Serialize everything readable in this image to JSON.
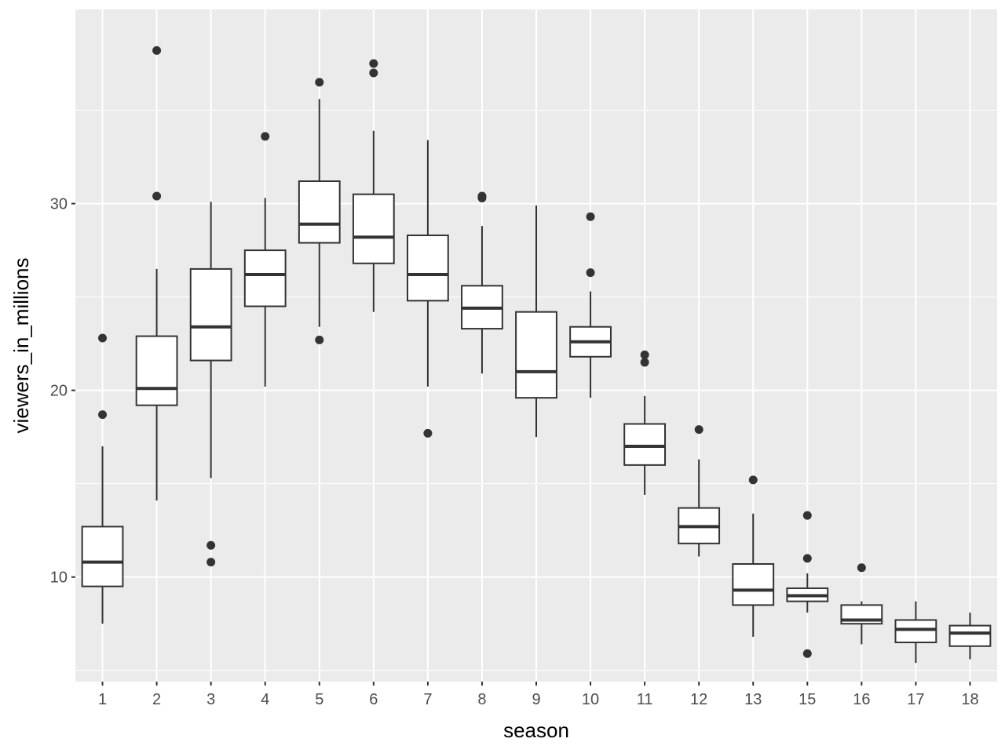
{
  "chart_data": {
    "type": "boxplot",
    "xlabel": "season",
    "ylabel": "viewers_in_millions",
    "yticks": [
      10,
      20,
      30
    ],
    "ylim": [
      4.4,
      40.4
    ],
    "grid": true,
    "colors": {
      "panel": "#ebebeb",
      "grid": "#ffffff",
      "box_line": "#333333",
      "box_fill": "#ffffff",
      "outlier": "#333333"
    },
    "categories": [
      "1",
      "2",
      "3",
      "4",
      "5",
      "6",
      "7",
      "8",
      "9",
      "10",
      "11",
      "12",
      "13",
      "15",
      "16",
      "17",
      "18"
    ],
    "boxes": [
      {
        "season": "1",
        "whisker_low": 7.5,
        "q1": 9.5,
        "median": 10.8,
        "q3": 12.7,
        "whisker_high": 17.0,
        "outliers": [
          18.7,
          22.8
        ]
      },
      {
        "season": "2",
        "whisker_low": 14.1,
        "q1": 19.2,
        "median": 20.1,
        "q3": 22.9,
        "whisker_high": 26.5,
        "outliers": [
          30.4,
          38.2
        ]
      },
      {
        "season": "3",
        "whisker_low": 15.3,
        "q1": 21.6,
        "median": 23.4,
        "q3": 26.5,
        "whisker_high": 30.1,
        "outliers": [
          10.8,
          11.7
        ]
      },
      {
        "season": "4",
        "whisker_low": 20.2,
        "q1": 24.5,
        "median": 26.2,
        "q3": 27.5,
        "whisker_high": 30.3,
        "outliers": [
          33.6
        ]
      },
      {
        "season": "5",
        "whisker_low": 23.4,
        "q1": 27.9,
        "median": 28.9,
        "q3": 31.2,
        "whisker_high": 35.6,
        "outliers": [
          22.7,
          36.5
        ]
      },
      {
        "season": "6",
        "whisker_low": 24.2,
        "q1": 26.8,
        "median": 28.2,
        "q3": 30.5,
        "whisker_high": 33.9,
        "outliers": [
          37.0,
          37.5
        ]
      },
      {
        "season": "7",
        "whisker_low": 20.2,
        "q1": 24.8,
        "median": 26.2,
        "q3": 28.3,
        "whisker_high": 33.4,
        "outliers": [
          17.7
        ]
      },
      {
        "season": "8",
        "whisker_low": 20.9,
        "q1": 23.3,
        "median": 24.4,
        "q3": 25.6,
        "whisker_high": 28.8,
        "outliers": [
          30.3,
          30.4
        ]
      },
      {
        "season": "9",
        "whisker_low": 17.5,
        "q1": 19.6,
        "median": 21.0,
        "q3": 24.2,
        "whisker_high": 29.9,
        "outliers": []
      },
      {
        "season": "10",
        "whisker_low": 19.6,
        "q1": 21.8,
        "median": 22.6,
        "q3": 23.4,
        "whisker_high": 25.3,
        "outliers": [
          26.3,
          29.3
        ]
      },
      {
        "season": "11",
        "whisker_low": 14.4,
        "q1": 16.0,
        "median": 17.0,
        "q3": 18.2,
        "whisker_high": 19.7,
        "outliers": [
          21.5,
          21.9
        ]
      },
      {
        "season": "12",
        "whisker_low": 11.1,
        "q1": 11.8,
        "median": 12.7,
        "q3": 13.7,
        "whisker_high": 16.3,
        "outliers": [
          17.9
        ]
      },
      {
        "season": "13",
        "whisker_low": 6.8,
        "q1": 8.5,
        "median": 9.3,
        "q3": 10.7,
        "whisker_high": 13.4,
        "outliers": [
          15.2
        ]
      },
      {
        "season": "15",
        "whisker_low": 8.1,
        "q1": 8.7,
        "median": 9.0,
        "q3": 9.4,
        "whisker_high": 10.2,
        "outliers": [
          5.9,
          11.0,
          13.3
        ]
      },
      {
        "season": "16",
        "whisker_low": 6.4,
        "q1": 7.5,
        "median": 7.7,
        "q3": 8.5,
        "whisker_high": 8.7,
        "outliers": [
          10.5
        ]
      },
      {
        "season": "17",
        "whisker_low": 5.4,
        "q1": 6.5,
        "median": 7.2,
        "q3": 7.7,
        "whisker_high": 8.7,
        "outliers": []
      },
      {
        "season": "18",
        "whisker_low": 5.6,
        "q1": 6.3,
        "median": 7.0,
        "q3": 7.4,
        "whisker_high": 8.1,
        "outliers": []
      }
    ]
  }
}
